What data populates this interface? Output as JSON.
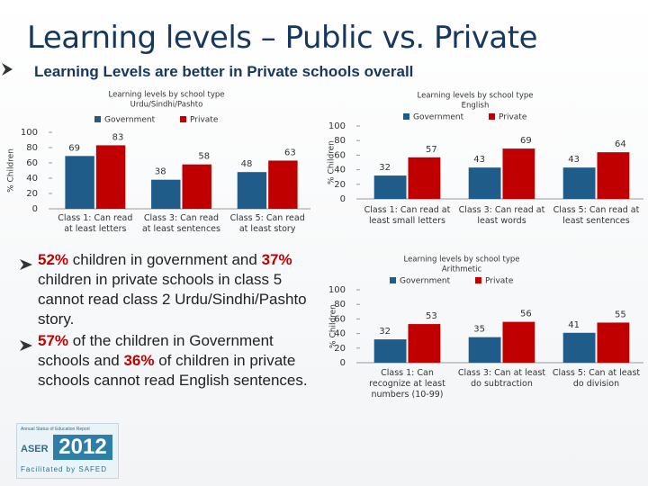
{
  "title": "Learning levels – Public vs. Private",
  "subtitle": "Learning Levels are better in Private schools overall",
  "bullets": [
    [
      {
        "text": "52%",
        "color": "#c00000"
      },
      {
        "text": " children in government and "
      },
      {
        "text": "37%",
        "color": "#c00000"
      },
      {
        "text": " children in private schools in class 5 cannot read class 2 Urdu/Sindhi/Pashto story."
      }
    ],
    [
      {
        "text": "57%",
        "color": "#c00000"
      },
      {
        "text": " of the children in Government schools and "
      },
      {
        "text": "36%",
        "color": "#c00000"
      },
      {
        "text": " of children in private schools cannot read English sentences."
      }
    ]
  ],
  "logo": {
    "line1": "Annual Status of Education Report",
    "name": "ASER",
    "year": "2012",
    "footer": "Facilitated by SAFED"
  },
  "chart_data": [
    {
      "type": "bar",
      "title": "Learning levels by school type",
      "subtitle": "Urdu/Sindhi/Pashto",
      "y_label": "% Children",
      "categories": [
        "Class 1: Can read at least letters",
        "Class 3: Can read at least sentences",
        "Class 5: Can read at least story"
      ],
      "series": [
        {
          "name": "Government",
          "color": "#1f5c8a",
          "values": [
            69,
            38,
            48
          ]
        },
        {
          "name": "Private",
          "color": "#c00000",
          "values": [
            83,
            58,
            63
          ]
        }
      ],
      "ylim": [
        0,
        100
      ],
      "yticks": [
        0,
        20,
        40,
        60,
        80,
        100
      ]
    },
    {
      "type": "bar",
      "title": "Learning levels by school type",
      "subtitle": "English",
      "y_label": "% Children",
      "categories": [
        "Class 1: Can read at least small letters",
        "Class 3: Can read at least words",
        "Class 5: Can read at least sentences"
      ],
      "series": [
        {
          "name": "Government",
          "color": "#1f5c8a",
          "values": [
            32,
            43,
            43
          ]
        },
        {
          "name": "Private",
          "color": "#c00000",
          "values": [
            57,
            69,
            64
          ]
        }
      ],
      "ylim": [
        0,
        100
      ],
      "yticks": [
        0,
        20,
        40,
        60,
        80,
        100
      ]
    },
    {
      "type": "bar",
      "title": "Learning levels by school type",
      "subtitle": "Arithmetic",
      "y_label": "% Children",
      "categories": [
        "Class 1: Can recognize at least numbers (10-99)",
        "Class 3: Can at least do subtraction",
        "Class 5: Can at least do division"
      ],
      "series": [
        {
          "name": "Government",
          "color": "#1f5c8a",
          "values": [
            32,
            35,
            41
          ]
        },
        {
          "name": "Private",
          "color": "#c00000",
          "values": [
            53,
            56,
            55
          ]
        }
      ],
      "ylim": [
        0,
        100
      ],
      "yticks": [
        0,
        20,
        40,
        60,
        80,
        100
      ]
    }
  ]
}
